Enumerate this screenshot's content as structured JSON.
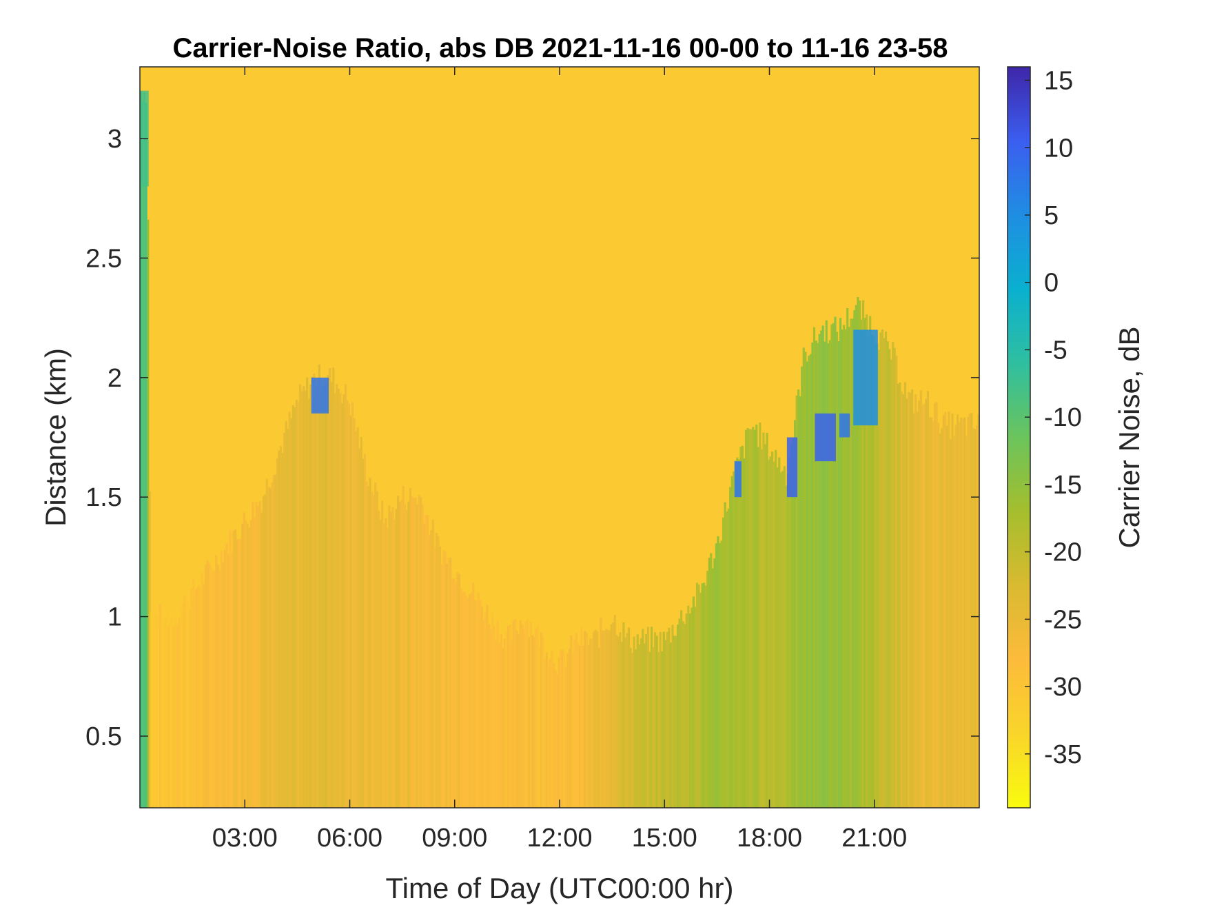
{
  "chart_data": {
    "type": "heatmap",
    "title": "Carrier-Noise Ratio, abs DB 2021-11-16 00-00 to 11-16 23-58",
    "xlabel": "Time of Day (UTC00:00 hr)",
    "ylabel": "Distance (km)",
    "colorbar_label": "Carrier Noise, dB",
    "x_unit": "hour",
    "xlim": [
      0,
      24
    ],
    "ylim": [
      0.2,
      3.3
    ],
    "clim": [
      -39,
      16
    ],
    "colormap": "parula",
    "x_ticks": [
      {
        "value": 3,
        "label": "03:00"
      },
      {
        "value": 6,
        "label": "06:00"
      },
      {
        "value": 9,
        "label": "09:00"
      },
      {
        "value": 12,
        "label": "12:00"
      },
      {
        "value": 15,
        "label": "15:00"
      },
      {
        "value": 18,
        "label": "18:00"
      },
      {
        "value": 21,
        "label": "21:00"
      }
    ],
    "y_ticks": [
      {
        "value": 0.5,
        "label": "0.5"
      },
      {
        "value": 1,
        "label": "1"
      },
      {
        "value": 1.5,
        "label": "1.5"
      },
      {
        "value": 2,
        "label": "2"
      },
      {
        "value": 2.5,
        "label": "2.5"
      },
      {
        "value": 3,
        "label": "3"
      }
    ],
    "colorbar_ticks": [
      {
        "value": 15,
        "label": "15"
      },
      {
        "value": 10,
        "label": "10"
      },
      {
        "value": 5,
        "label": "5"
      },
      {
        "value": 0,
        "label": "0"
      },
      {
        "value": -5,
        "label": "-5"
      },
      {
        "value": -10,
        "label": "-10"
      },
      {
        "value": -15,
        "label": "-15"
      },
      {
        "value": -20,
        "label": "-20"
      },
      {
        "value": -25,
        "label": "-25"
      },
      {
        "value": -30,
        "label": "-30"
      },
      {
        "value": -35,
        "label": "-35"
      }
    ],
    "background_value": -31,
    "column_profiles": {
      "description_units": "hour, top distance km, value dB",
      "x": [
        0,
        0.2,
        0.3,
        1,
        2,
        2.5,
        3,
        3.5,
        4,
        4.5,
        5,
        5.5,
        6,
        6.5,
        7,
        7.5,
        8,
        8.5,
        9,
        9.5,
        10,
        10.5,
        11,
        11.5,
        12,
        12.5,
        13,
        13.5,
        14,
        14.5,
        15,
        15.5,
        16,
        16.5,
        17,
        17.5,
        18,
        18.5,
        19,
        19.5,
        20,
        20.5,
        21,
        21.5,
        22,
        22.5,
        23,
        24
      ],
      "top_km": [
        3.2,
        3.2,
        1.0,
        1.0,
        1.2,
        1.3,
        1.4,
        1.5,
        1.7,
        1.9,
        2.0,
        2.0,
        1.9,
        1.6,
        1.4,
        1.5,
        1.5,
        1.3,
        1.2,
        1.1,
        1.0,
        0.9,
        1.0,
        0.9,
        0.8,
        0.9,
        0.9,
        1.0,
        0.9,
        0.9,
        0.9,
        1.0,
        1.1,
        1.3,
        1.6,
        1.8,
        1.7,
        1.6,
        2.1,
        2.2,
        2.2,
        2.3,
        2.2,
        2.1,
        1.9,
        1.9,
        1.8,
        1.8
      ],
      "value_db": [
        -8,
        -10,
        -30,
        -30,
        -28,
        -28,
        -26,
        -26,
        -25,
        -25,
        -24,
        -24,
        -25,
        -26,
        -26,
        -26,
        -26,
        -27,
        -27,
        -28,
        -28,
        -28,
        -28,
        -28,
        -28,
        -28,
        -26,
        -24,
        -22,
        -21,
        -20,
        -19,
        -18,
        -17,
        -17,
        -18,
        -19,
        -18,
        -16,
        -15,
        -16,
        -17,
        -19,
        -21,
        -24,
        -25,
        -25,
        -25
      ]
    },
    "strong_echo_patches": [
      {
        "x": [
          0.0,
          0.25
        ],
        "y": [
          2.8,
          3.2
        ],
        "value": -8
      },
      {
        "x": [
          4.9,
          5.4
        ],
        "y": [
          1.85,
          2.0
        ],
        "value": 8
      },
      {
        "x": [
          17.0,
          17.2
        ],
        "y": [
          1.5,
          1.65
        ],
        "value": 8
      },
      {
        "x": [
          18.5,
          18.8
        ],
        "y": [
          1.5,
          1.75
        ],
        "value": 10
      },
      {
        "x": [
          19.3,
          19.9
        ],
        "y": [
          1.65,
          1.85
        ],
        "value": 10
      },
      {
        "x": [
          20.0,
          20.3
        ],
        "y": [
          1.75,
          1.85
        ],
        "value": 8
      },
      {
        "x": [
          20.4,
          21.1
        ],
        "y": [
          1.8,
          2.2
        ],
        "value": 5
      }
    ]
  }
}
